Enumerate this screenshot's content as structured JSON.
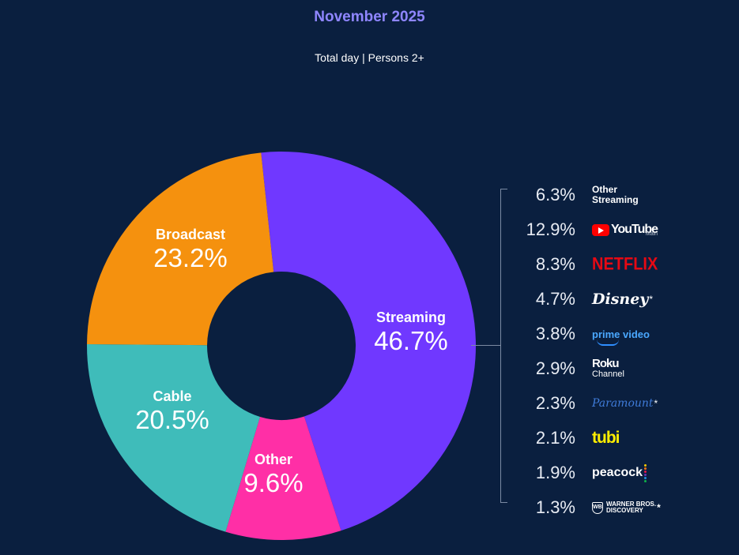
{
  "header": {
    "title": "November 2025",
    "subtitle": "Total day | Persons 2+"
  },
  "colors": {
    "background": "#0a1f3f",
    "title": "#8f86ff",
    "streaming": "#7038ff",
    "other": "#ff2fa6",
    "cable": "#3fbcba",
    "broadcast": "#f5910e"
  },
  "chart_data": {
    "type": "pie",
    "title": "November 2025",
    "subtitle": "Total day | Persons 2+",
    "donut": true,
    "segments": [
      {
        "name": "Streaming",
        "label": "46.7%",
        "value": 46.7,
        "color": "#7038ff"
      },
      {
        "name": "Other",
        "label": "9.6%",
        "value": 9.6,
        "color": "#ff2fa6"
      },
      {
        "name": "Cable",
        "label": "20.5%",
        "value": 20.5,
        "color": "#3fbcba"
      },
      {
        "name": "Broadcast",
        "label": "23.2%",
        "value": 23.2,
        "color": "#f5910e"
      }
    ],
    "breakdown_of": "Streaming",
    "breakdown": [
      {
        "value": 6.3,
        "label": "6.3%",
        "name": "Other Streaming",
        "icon": "other-streaming-logo"
      },
      {
        "value": 12.9,
        "label": "12.9%",
        "name": "YouTube",
        "note": "Main",
        "icon": "youtube-logo"
      },
      {
        "value": 8.3,
        "label": "8.3%",
        "name": "NETFLIX",
        "icon": "netflix-logo"
      },
      {
        "value": 4.7,
        "label": "4.7%",
        "name": "Disney",
        "note": "*",
        "icon": "disney-logo"
      },
      {
        "value": 3.8,
        "label": "3.8%",
        "name": "prime video",
        "icon": "prime-video-logo"
      },
      {
        "value": 2.9,
        "label": "2.9%",
        "name": "Roku Channel",
        "icon": "roku-channel-logo"
      },
      {
        "value": 2.3,
        "label": "2.3%",
        "name": "Paramount",
        "note": "*",
        "icon": "paramount-logo"
      },
      {
        "value": 2.1,
        "label": "2.1%",
        "name": "tubi",
        "icon": "tubi-logo"
      },
      {
        "value": 1.9,
        "label": "1.9%",
        "name": "peacock",
        "icon": "peacock-logo"
      },
      {
        "value": 1.3,
        "label": "1.3%",
        "name": "Warner Bros. Discovery",
        "note": "*",
        "icon": "warner-bros-discovery-logo"
      }
    ]
  },
  "logos": {
    "other_streaming_line1": "Other",
    "other_streaming_line2": "Streaming",
    "youtube": "YouTube",
    "youtube_sub": "Main",
    "netflix": "NETFLIX",
    "disney": "Disney",
    "prime": "prime video",
    "roku_line1": "Roku",
    "roku_line2": "Channel",
    "paramount": "Paramount",
    "tubi": "tubi",
    "peacock": "peacock",
    "wbd_line1": "WARNER BROS.",
    "wbd_line2": "DISCOVERY",
    "asterisk": "*"
  }
}
